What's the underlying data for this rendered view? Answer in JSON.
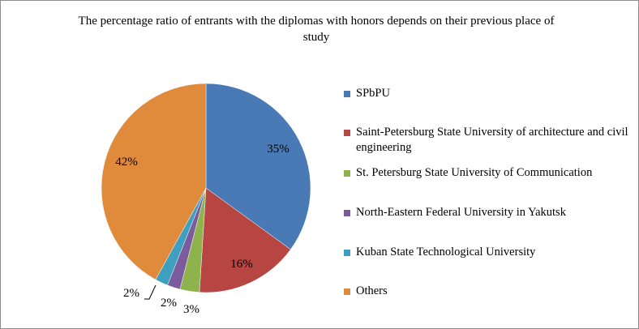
{
  "chart_data": {
    "type": "pie",
    "title": "The percentage ratio of entrants with the diplomas with honors depends on their previous place of study",
    "slices": [
      {
        "name": "SPbPU",
        "value": 35,
        "label": "35%",
        "color": "#4a7ab5"
      },
      {
        "name": "Saint-Petersburg State University of architecture and civil engineering",
        "value": 16,
        "label": "16%",
        "color": "#b74542"
      },
      {
        "name": "St. Petersburg State University of Communication",
        "value": 3,
        "label": "3%",
        "color": "#8eb24c"
      },
      {
        "name": "North-Eastern Federal University in Yakutsk",
        "value": 2,
        "label": "2%",
        "color": "#7b5b9c"
      },
      {
        "name": "Kuban State Technological University",
        "value": 2,
        "label": "2%",
        "color": "#3f9fbf"
      },
      {
        "name": "Others",
        "value": 42,
        "label": "42%",
        "color": "#e08a3c"
      }
    ],
    "legend_position": "right"
  }
}
